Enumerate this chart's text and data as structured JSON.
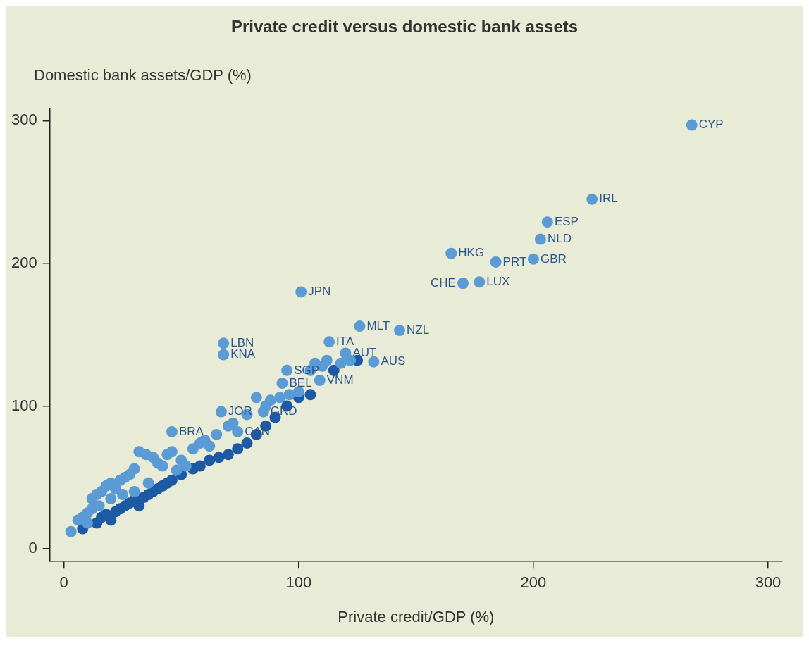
{
  "chart_data": {
    "type": "scatter",
    "title": "Private credit versus domestic bank assets",
    "xlabel": "Private credit/GDP (%)",
    "ylabel": "Domestic bank assets/GDP (%)",
    "xlim": [
      -6,
      306
    ],
    "ylim": [
      -9,
      308
    ],
    "xticks": [
      0,
      100,
      200,
      300
    ],
    "yticks": [
      0,
      100,
      200,
      300
    ],
    "grid": false,
    "legend": false,
    "marker": "circle",
    "series": [
      {
        "color": "#5b9bd5",
        "x": [
          267.5,
          225,
          206,
          203,
          165,
          184,
          200,
          170,
          177,
          101,
          126,
          143,
          113,
          68,
          68,
          120,
          132,
          95,
          93,
          109,
          85,
          74,
          46,
          67,
          3,
          6,
          8,
          10,
          12,
          12,
          14,
          16,
          18,
          20,
          22,
          24,
          26,
          28,
          30,
          32,
          35,
          38,
          40,
          42,
          44,
          46,
          50,
          55,
          58,
          60,
          62,
          65,
          70,
          72,
          78,
          82,
          86,
          88,
          92,
          96,
          100,
          105,
          107,
          110,
          112,
          118,
          122,
          15,
          20,
          25,
          30,
          36,
          10,
          48,
          52
        ],
        "values": [
          297,
          245,
          229,
          217,
          207,
          201,
          203,
          186,
          187,
          180,
          156,
          153,
          145,
          144,
          136,
          137,
          131,
          125,
          116,
          118,
          96,
          82,
          82,
          96,
          12,
          20,
          22,
          25,
          28,
          35,
          38,
          40,
          44,
          46,
          42,
          48,
          50,
          52,
          56,
          68,
          66,
          64,
          60,
          58,
          66,
          68,
          62,
          70,
          74,
          76,
          72,
          80,
          86,
          88,
          94,
          106,
          100,
          104,
          106,
          108,
          110,
          125,
          130,
          128,
          132,
          130,
          132,
          30,
          35,
          38,
          40,
          46,
          18,
          55,
          58
        ]
      },
      {
        "color": "#1c5aa6",
        "x": [
          8,
          10,
          14,
          16,
          18,
          20,
          22,
          24,
          26,
          28,
          30,
          32,
          34,
          36,
          38,
          40,
          42,
          44,
          46,
          50,
          55,
          58,
          62,
          66,
          70,
          74,
          78,
          82,
          86,
          90,
          95,
          100,
          105,
          110,
          115,
          120,
          125
        ],
        "values": [
          14,
          null,
          18,
          22,
          24,
          20,
          26,
          28,
          30,
          32,
          34,
          30,
          36,
          38,
          40,
          42,
          44,
          46,
          48,
          52,
          56,
          58,
          62,
          64,
          66,
          70,
          74,
          80,
          86,
          92,
          100,
          106,
          108,
          null,
          125,
          null,
          132
        ]
      }
    ],
    "annotations": [
      {
        "text": "CYP",
        "x": 267.5,
        "y": 297
      },
      {
        "text": "IRL",
        "x": 225,
        "y": 245
      },
      {
        "text": "ESP",
        "x": 206,
        "y": 229
      },
      {
        "text": "NLD",
        "x": 203,
        "y": 217
      },
      {
        "text": "HKG",
        "x": 165,
        "y": 207
      },
      {
        "text": "PRT",
        "x": 184,
        "y": 201
      },
      {
        "text": "GBR",
        "x": 200,
        "y": 203
      },
      {
        "text": "CHE",
        "x": 170,
        "y": 186
      },
      {
        "text": "LUX",
        "x": 177,
        "y": 187
      },
      {
        "text": "JPN",
        "x": 101,
        "y": 180
      },
      {
        "text": "MLT",
        "x": 126,
        "y": 156
      },
      {
        "text": "NZL",
        "x": 143,
        "y": 153
      },
      {
        "text": "ITA",
        "x": 113,
        "y": 145
      },
      {
        "text": "LBN",
        "x": 68,
        "y": 144
      },
      {
        "text": "KNA",
        "x": 68,
        "y": 136
      },
      {
        "text": "AUT",
        "x": 120,
        "y": 137
      },
      {
        "text": "AUS",
        "x": 132,
        "y": 131
      },
      {
        "text": "SGP",
        "x": 95,
        "y": 125
      },
      {
        "text": "BEL",
        "x": 93,
        "y": 116
      },
      {
        "text": "VNM",
        "x": 109,
        "y": 118
      },
      {
        "text": "GRD",
        "x": 85,
        "y": 96
      },
      {
        "text": "CAN",
        "x": 74,
        "y": 82
      },
      {
        "text": "BRA",
        "x": 46,
        "y": 82
      },
      {
        "text": "JOR",
        "x": 67,
        "y": 96
      }
    ]
  }
}
